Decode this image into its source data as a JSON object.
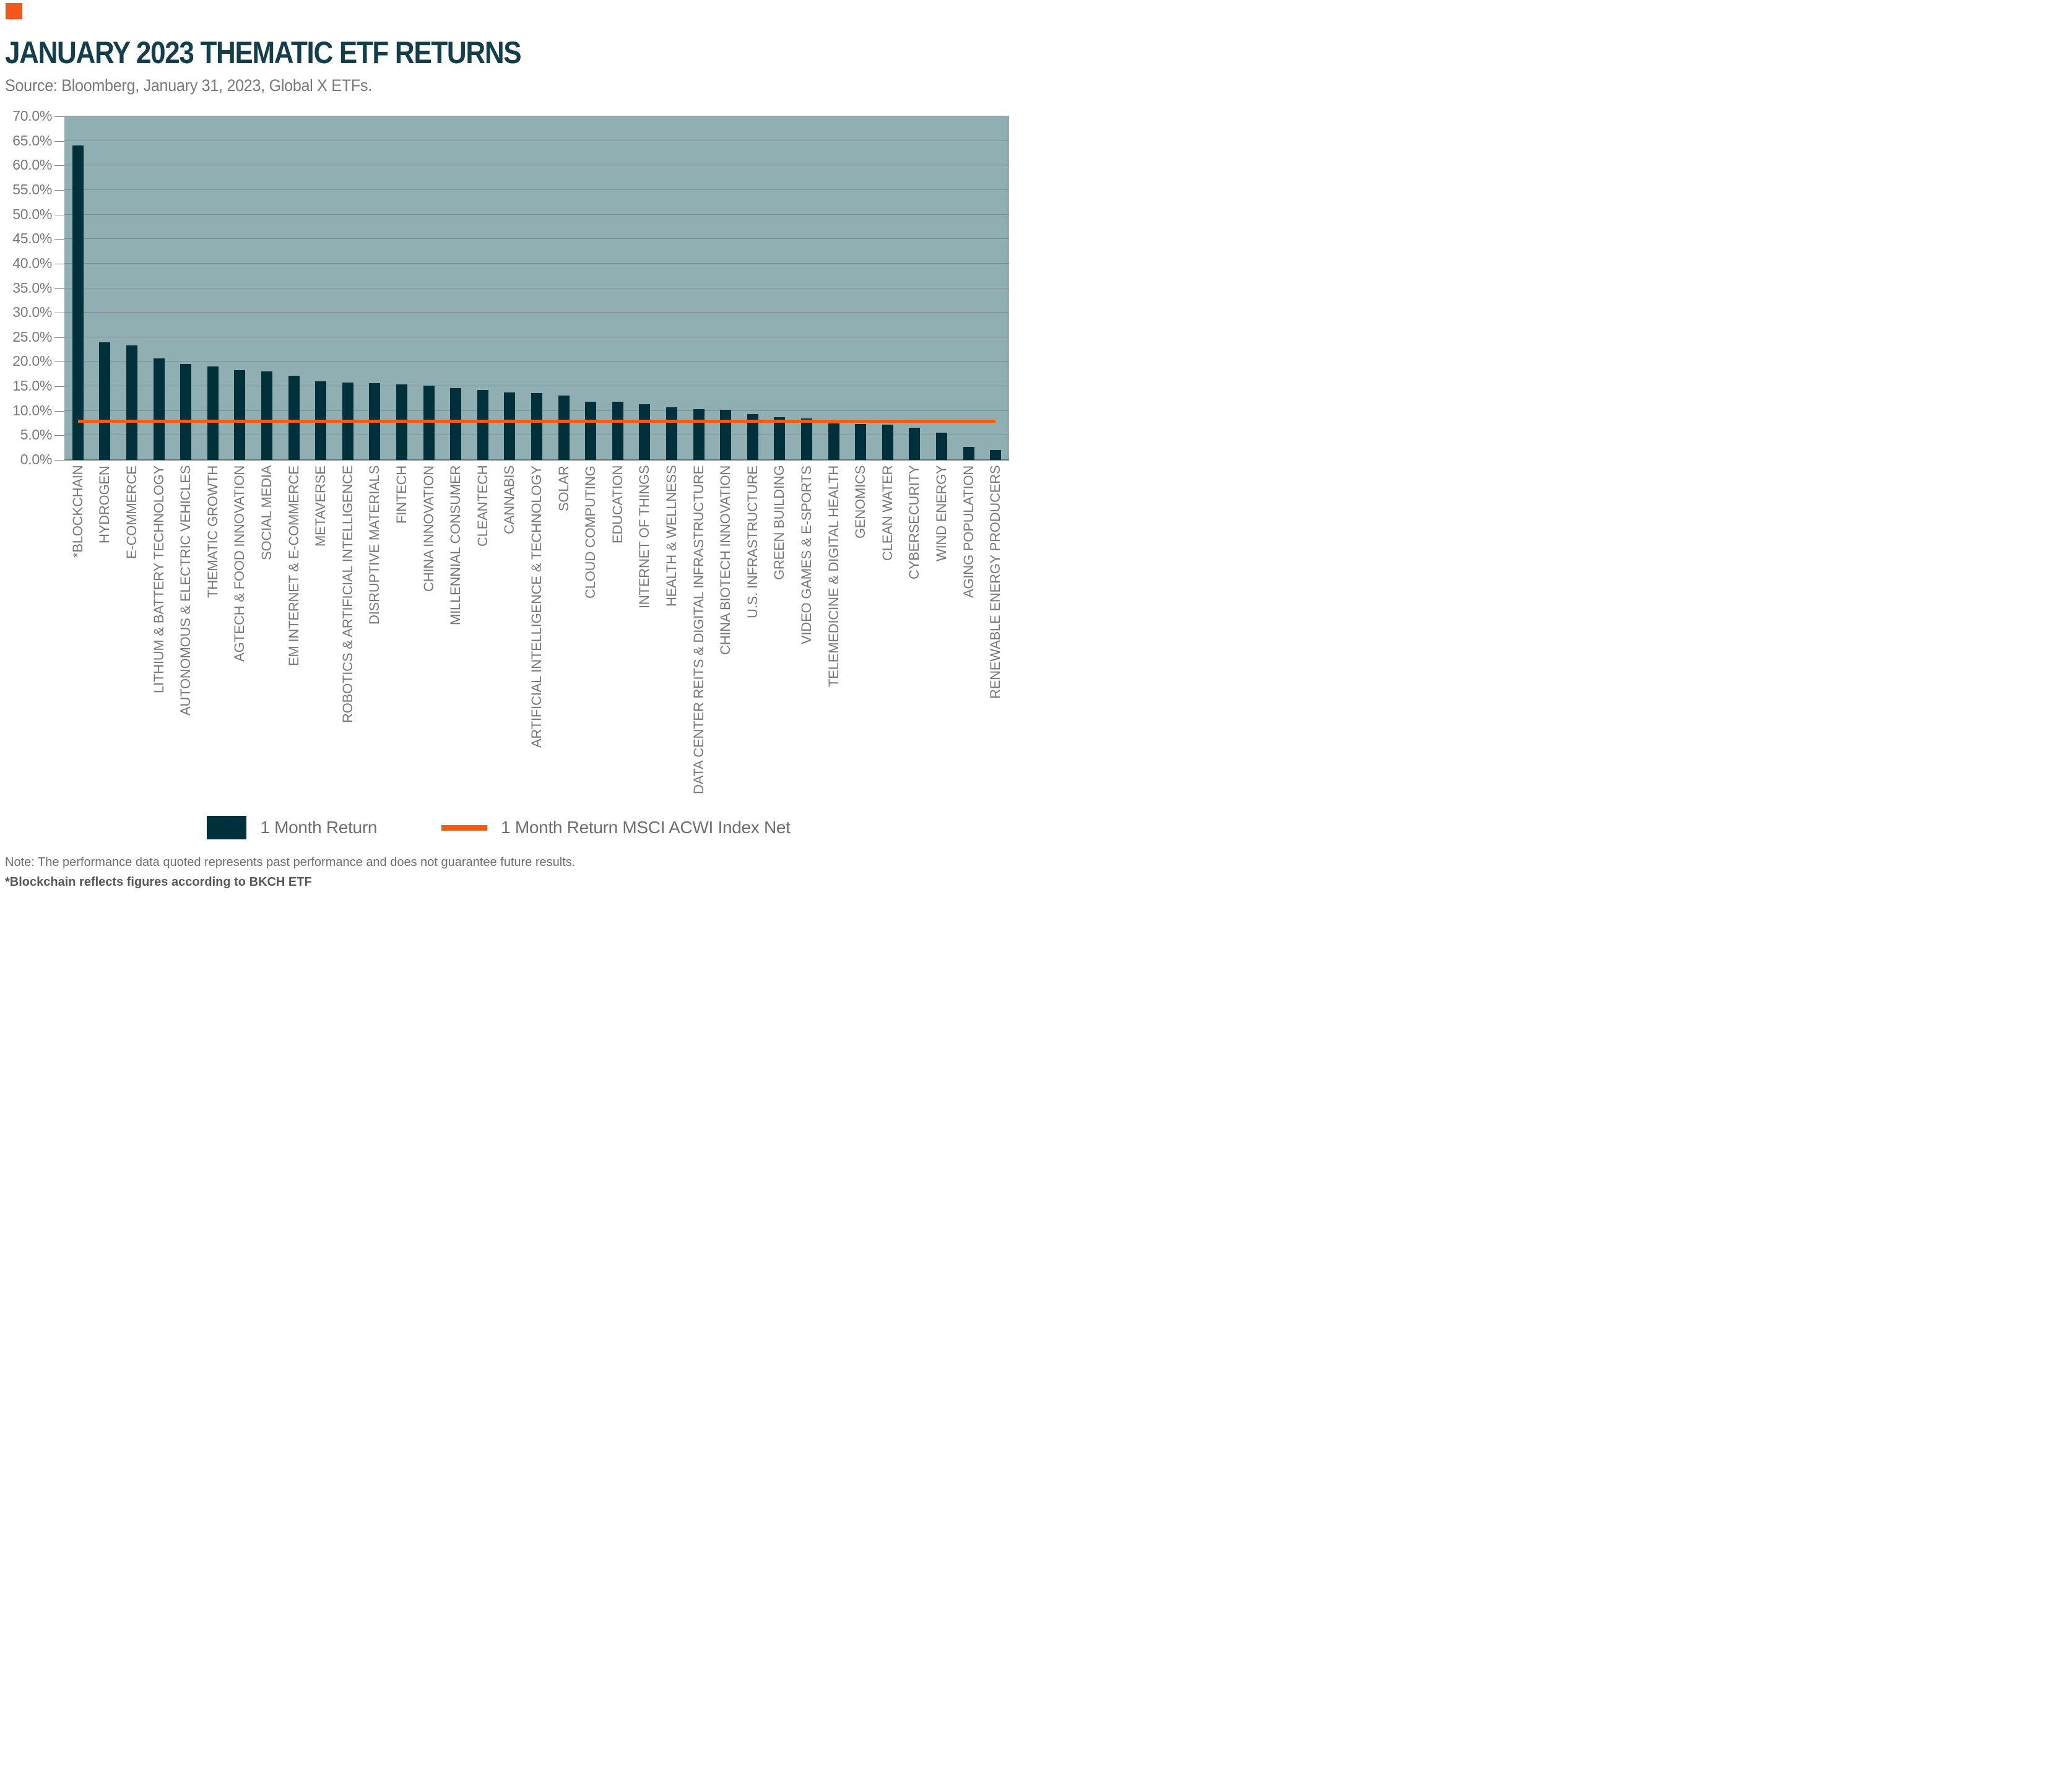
{
  "page": {
    "title": "JANUARY 2023 THEMATIC ETF RETURNS",
    "source": "Source: Bloomberg, January 31, 2023, Global X ETFs.",
    "note_line1": "Note: The performance data quoted represents past performance and does not guarantee future results.",
    "note_line2": "*Blockchain reflects figures according to BKCH ETF"
  },
  "legend": {
    "bar_label": "1 Month Return",
    "line_label": "1 Month Return MSCI ACWI Index Net"
  },
  "colors": {
    "logo_orange": "#F4571C",
    "bar_teal": "#00303A",
    "line_orange": "#FA5A0C",
    "plot_background": "#8FAFB2",
    "gridline_gray": "#7E8386",
    "title_teal": "#123F49",
    "text_gray": "#77787B"
  },
  "chart_data": {
    "type": "bar",
    "title": "JANUARY 2023 THEMATIC ETF RETURNS",
    "xlabel": "",
    "ylabel": "",
    "ylim": [
      0,
      70
    ],
    "ytick_step": 5,
    "ytick_labels": [
      "0.0%",
      "5.0%",
      "10.0%",
      "15.0%",
      "20.0%",
      "25.0%",
      "30.0%",
      "35.0%",
      "40.0%",
      "45.0%",
      "50.0%",
      "55.0%",
      "60.0%",
      "65.0%",
      "70.0%"
    ],
    "grid": true,
    "legend_position": "bottom",
    "categories": [
      "*BLOCKCHAIN",
      "HYDROGEN",
      "E-COMMERCE",
      "LITHIUM & BATTERY TECHNOLOGY",
      "AUTONOMOUS & ELECTRIC VEHICLES",
      "THEMATIC GROWTH",
      "AGTECH & FOOD INNOVATION",
      "SOCIAL MEDIA",
      "EM INTERNET & E-COMMERCE",
      "METAVERSE",
      "ROBOTICS & ARTIFICIAL INTELLIGENCE",
      "DISRUPTIVE MATERIALS",
      "FINTECH",
      "CHINA INNOVATION",
      "MILLENNIAL CONSUMER",
      "CLEANTECH",
      "CANNABIS",
      "ARTIFICIAL INTELLIGENCE & TECHNOLOGY",
      "SOLAR",
      "CLOUD COMPUTING",
      "EDUCATION",
      "INTERNET OF THINGS",
      "HEALTH & WELLNESS",
      "DATA CENTER REITS & DIGITAL INFRASTRUCTURE",
      "CHINA BIOTECH INNOVATION",
      "U.S. INFRASTRUCTURE",
      "GREEN BUILDING",
      "VIDEO GAMES & E-SPORTS",
      "TELEMEDICINE & DIGITAL HEALTH",
      "GENOMICS",
      "CLEAN WATER",
      "CYBERSECURITY",
      "WIND ENERGY",
      "AGING POPULATION",
      "RENEWABLE ENERGY PRODUCERS"
    ],
    "series": [
      {
        "name": "1 Month Return",
        "type": "bar",
        "values": [
          64.1,
          24.0,
          23.3,
          20.7,
          19.6,
          19.0,
          18.3,
          18.0,
          17.2,
          16.0,
          15.8,
          15.6,
          15.4,
          15.1,
          14.6,
          14.3,
          13.7,
          13.6,
          13.1,
          11.9,
          11.8,
          11.3,
          10.7,
          10.3,
          10.2,
          9.3,
          8.7,
          8.5,
          7.5,
          7.3,
          7.2,
          6.6,
          5.5,
          2.7,
          2.0
        ]
      },
      {
        "name": "1 Month Return MSCI ACWI Index Net",
        "type": "line",
        "value": 7.9
      }
    ]
  }
}
